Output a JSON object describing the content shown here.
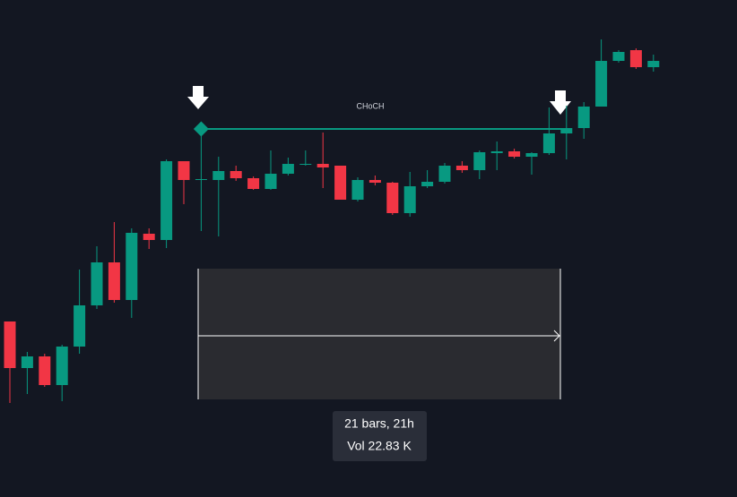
{
  "chart_data": {
    "type": "candlestick",
    "categories": [
      null,
      null,
      null,
      null,
      null,
      null,
      null,
      null,
      null,
      null,
      null,
      null,
      null,
      null,
      null,
      null,
      null,
      null,
      null,
      null,
      null,
      null,
      null,
      null,
      null,
      null,
      null,
      null,
      null,
      null,
      null,
      null,
      null,
      null,
      null,
      null,
      null,
      null
    ],
    "open": [
      196,
      144,
      157,
      125,
      168,
      214,
      262,
      220,
      294,
      287,
      375,
      354,
      354,
      364,
      356,
      344,
      361,
      371,
      372,
      370,
      332,
      354,
      351,
      317,
      347,
      352,
      370,
      365,
      384,
      386,
      380,
      384,
      406,
      412,
      436,
      487,
      499,
      480
    ],
    "high": [
      196,
      162,
      160,
      170,
      254,
      280,
      307,
      300,
      300,
      377,
      375,
      410,
      380,
      370,
      358,
      387,
      379,
      387,
      407,
      370,
      357,
      359,
      352,
      363,
      365,
      373,
      375,
      387,
      397,
      389,
      385,
      435,
      437,
      441,
      511,
      499,
      501,
      494
    ],
    "low": [
      105,
      115,
      123,
      107,
      160,
      210,
      217,
      200,
      277,
      278,
      327,
      297,
      291,
      353,
      343,
      343,
      359,
      370,
      345,
      332,
      330,
      348,
      315,
      313,
      345,
      350,
      362,
      355,
      365,
      378,
      360,
      382,
      377,
      400,
      436,
      485,
      478,
      475
    ],
    "close": [
      144,
      157,
      125,
      168,
      214,
      262,
      220,
      295,
      287,
      375,
      354,
      355,
      364,
      356,
      344,
      361,
      372,
      372,
      368,
      332,
      354,
      351,
      317,
      347,
      352,
      370,
      365,
      385,
      386,
      380,
      384,
      406,
      412,
      436,
      487,
      497,
      480,
      487
    ],
    "up_color": "#089981",
    "down_color": "#f23645",
    "ylim": [
      0,
      555
    ],
    "annotation": {
      "text": "CHoCH",
      "level": 411,
      "color": "#089981"
    },
    "measure": {
      "line1": "21 bars, 21h",
      "line2": "Vol 22.83 K"
    }
  }
}
